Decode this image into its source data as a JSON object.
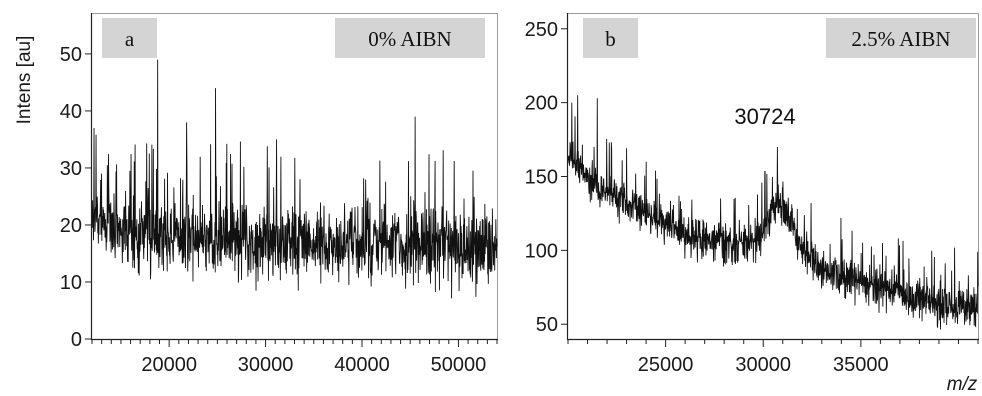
{
  "colors": {
    "trace": "#111111",
    "frame": "#9a9a9a",
    "badge_fill": "#d4d4d4",
    "background": "#ffffff"
  },
  "y_axis_title": "Intens [au]",
  "x_axis_title": "m/z",
  "chart_data": [
    {
      "type": "line",
      "panel_label": "a",
      "condition": "0% AIBN",
      "xlabel": "",
      "ylabel": "Intens [au]",
      "xlim": [
        12000,
        54000
      ],
      "ylim": [
        0,
        57
      ],
      "x_ticks": [
        20000,
        30000,
        40000,
        50000
      ],
      "x_tick_labels": [
        "20000",
        "30000",
        "40000",
        "50000"
      ],
      "y_ticks": [
        0,
        10,
        20,
        30,
        40,
        50
      ],
      "y_tick_labels": [
        "0",
        "10",
        "20",
        "30",
        "40",
        "50"
      ],
      "grid": false,
      "series": [
        {
          "x": [
            12000,
            14000,
            16000,
            18000,
            20000,
            22000,
            24000,
            26000,
            28000,
            30000,
            32000,
            34000,
            36000,
            38000,
            40000,
            42000,
            44000,
            46000,
            48000,
            50000,
            52000,
            54000
          ],
          "values": [
            21,
            20,
            19,
            18.5,
            18,
            18,
            17.8,
            17.5,
            17.3,
            17.2,
            17,
            17,
            16.8,
            16.8,
            16.7,
            16.6,
            16.5,
            16.5,
            16.4,
            16.3,
            16.2,
            16
          ],
          "noise": 6,
          "spikes": [
            [
              18800,
              49
            ],
            [
              24800,
              44
            ],
            [
              45500,
              39
            ],
            [
              12200,
              37
            ],
            [
              21800,
              38
            ]
          ]
        }
      ]
    },
    {
      "type": "line",
      "panel_label": "b",
      "condition": "2.5% AIBN",
      "xlabel": "m/z",
      "ylabel": "",
      "xlim": [
        20000,
        41000
      ],
      "ylim": [
        40,
        260
      ],
      "x_ticks": [
        25000,
        30000,
        35000
      ],
      "x_tick_labels": [
        "25000",
        "30000",
        "35000"
      ],
      "y_ticks": [
        50,
        100,
        150,
        200,
        250
      ],
      "y_tick_labels": [
        "50",
        "100",
        "150",
        "200",
        "250"
      ],
      "grid": false,
      "annotations": [
        {
          "text": "30724",
          "x": 30724,
          "y": 170
        }
      ],
      "series": [
        {
          "x": [
            20000,
            21000,
            22000,
            23000,
            24000,
            25000,
            26000,
            27000,
            28000,
            29000,
            29800,
            30300,
            30724,
            31200,
            31800,
            32500,
            33500,
            34500,
            35500,
            36500,
            37500,
            38500,
            39500,
            40500,
            41000
          ],
          "values": [
            165,
            150,
            140,
            132,
            124,
            117,
            112,
            108,
            104,
            103,
            110,
            122,
            135,
            122,
            108,
            94,
            86,
            81,
            77,
            74,
            70,
            67,
            64,
            62,
            60
          ],
          "noise": 13,
          "spikes": [
            [
              20500,
              205
            ],
            [
              21500,
              203
            ],
            [
              30724,
              170
            ],
            [
              20200,
              200
            ],
            [
              24000,
              160
            ]
          ]
        }
      ]
    }
  ]
}
